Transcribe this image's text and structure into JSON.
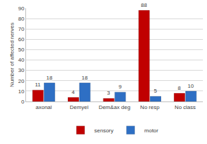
{
  "chart_data": {
    "type": "bar",
    "y_label": "Number of affected nerves",
    "categories": [
      "axonal",
      "Demyel",
      "Dem&ax deg",
      "No resp",
      "No class"
    ],
    "series": [
      {
        "name": "sensory",
        "color": "#c00000",
        "values": [
          11,
          4,
          3,
          88,
          8
        ]
      },
      {
        "name": "motor",
        "color": "#2e6fc4",
        "values": [
          18,
          18,
          9,
          5,
          10
        ]
      }
    ],
    "ylim": [
      0,
      90
    ],
    "yticks": [
      0,
      10,
      20,
      30,
      40,
      50,
      60,
      70,
      80,
      90
    ],
    "grid": true,
    "legend": "bottom",
    "data_labels": true
  }
}
